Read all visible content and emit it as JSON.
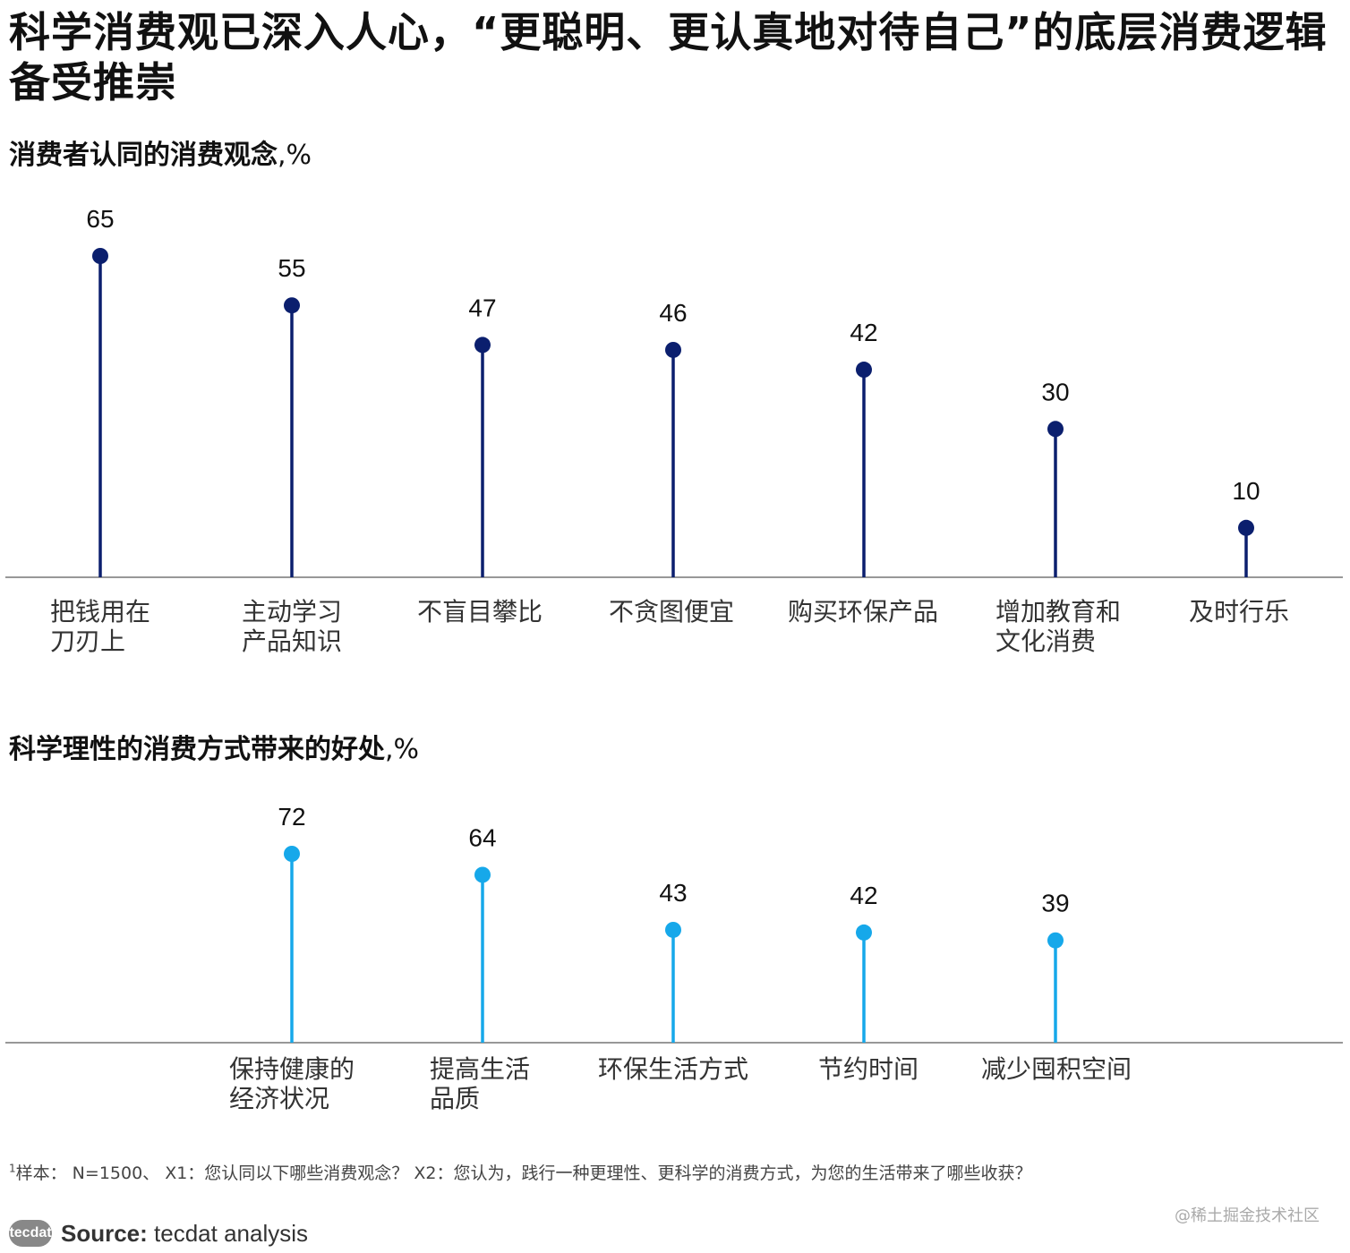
{
  "title": "科学消费观已深入人心，“更聪明、更认真地对待自己”的底层消费逻辑备受推崇",
  "chart_data": [
    {
      "type": "lollipop",
      "title": "消费者认同的消费观念",
      "unit": ",%",
      "color": "#0b1f6e",
      "categories": [
        [
          "把钱用在",
          "刀刃上"
        ],
        [
          "主动学习",
          "产品知识"
        ],
        [
          "不盲目攀比"
        ],
        [
          "不贪图便宜"
        ],
        [
          "购买环保产品"
        ],
        [
          "增加教育和",
          "文化消费"
        ],
        [
          "及时行乐"
        ]
      ],
      "values": [
        65,
        55,
        47,
        46,
        42,
        30,
        10
      ],
      "ylim": [
        0,
        65
      ]
    },
    {
      "type": "lollipop",
      "title": "科学理性的消费方式带来的好处",
      "unit": ",%",
      "color": "#16a8ea",
      "categories": [
        [
          "保持健康的",
          "经济状况"
        ],
        [
          "提高生活",
          "品质"
        ],
        [
          "环保生活方式"
        ],
        [
          "节约时间"
        ],
        [
          "减少囤积空间"
        ]
      ],
      "values": [
        72,
        64,
        43,
        42,
        39
      ],
      "ylim": [
        0,
        72
      ]
    }
  ],
  "footnote": {
    "marker": "1",
    "text": "样本： N=1500、 X1：您认同以下哪些消费观念？ X2：您认为，践行一种更理性、更科学的消费方式，为您的生活带来了哪些收获？"
  },
  "source": {
    "logo": "tecdat",
    "label": "Source:",
    "text": " tecdat analysis"
  },
  "watermark": "@稀土掘金技术社区"
}
